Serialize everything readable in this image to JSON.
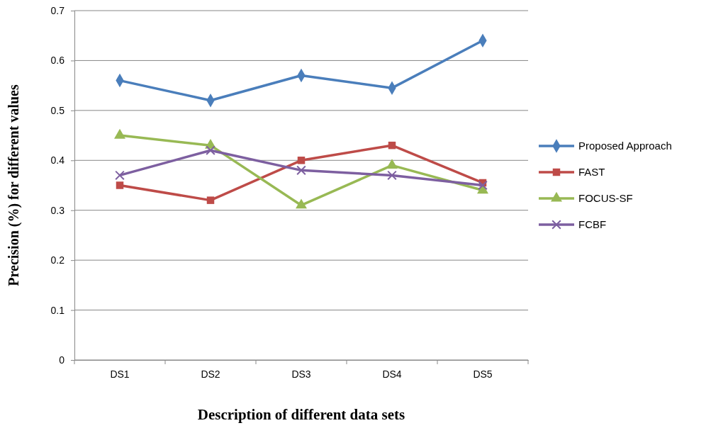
{
  "chart_data": {
    "type": "line",
    "xlabel": "Description of different data sets",
    "ylabel": "Precision (%) for different values",
    "categories": [
      "DS1",
      "DS2",
      "DS3",
      "DS4",
      "DS5"
    ],
    "ylim": [
      0,
      0.7
    ],
    "yticks": [
      0,
      0.1,
      0.2,
      0.3,
      0.4,
      0.5,
      0.6,
      0.7
    ],
    "grid": "y",
    "legend": "right",
    "series": [
      {
        "name": "Proposed Approach",
        "color": "#4a7ebb",
        "marker": "diamond",
        "values": [
          0.56,
          0.52,
          0.57,
          0.545,
          0.64
        ]
      },
      {
        "name": "FAST",
        "color": "#be4b48",
        "marker": "square",
        "values": [
          0.35,
          0.32,
          0.4,
          0.43,
          0.355
        ]
      },
      {
        "name": "FOCUS-SF",
        "color": "#98b954",
        "marker": "triangle",
        "values": [
          0.45,
          0.43,
          0.31,
          0.39,
          0.34
        ]
      },
      {
        "name": "FCBF",
        "color": "#7d5fa0",
        "marker": "cross",
        "values": [
          0.37,
          0.42,
          0.38,
          0.37,
          0.35
        ]
      }
    ]
  }
}
